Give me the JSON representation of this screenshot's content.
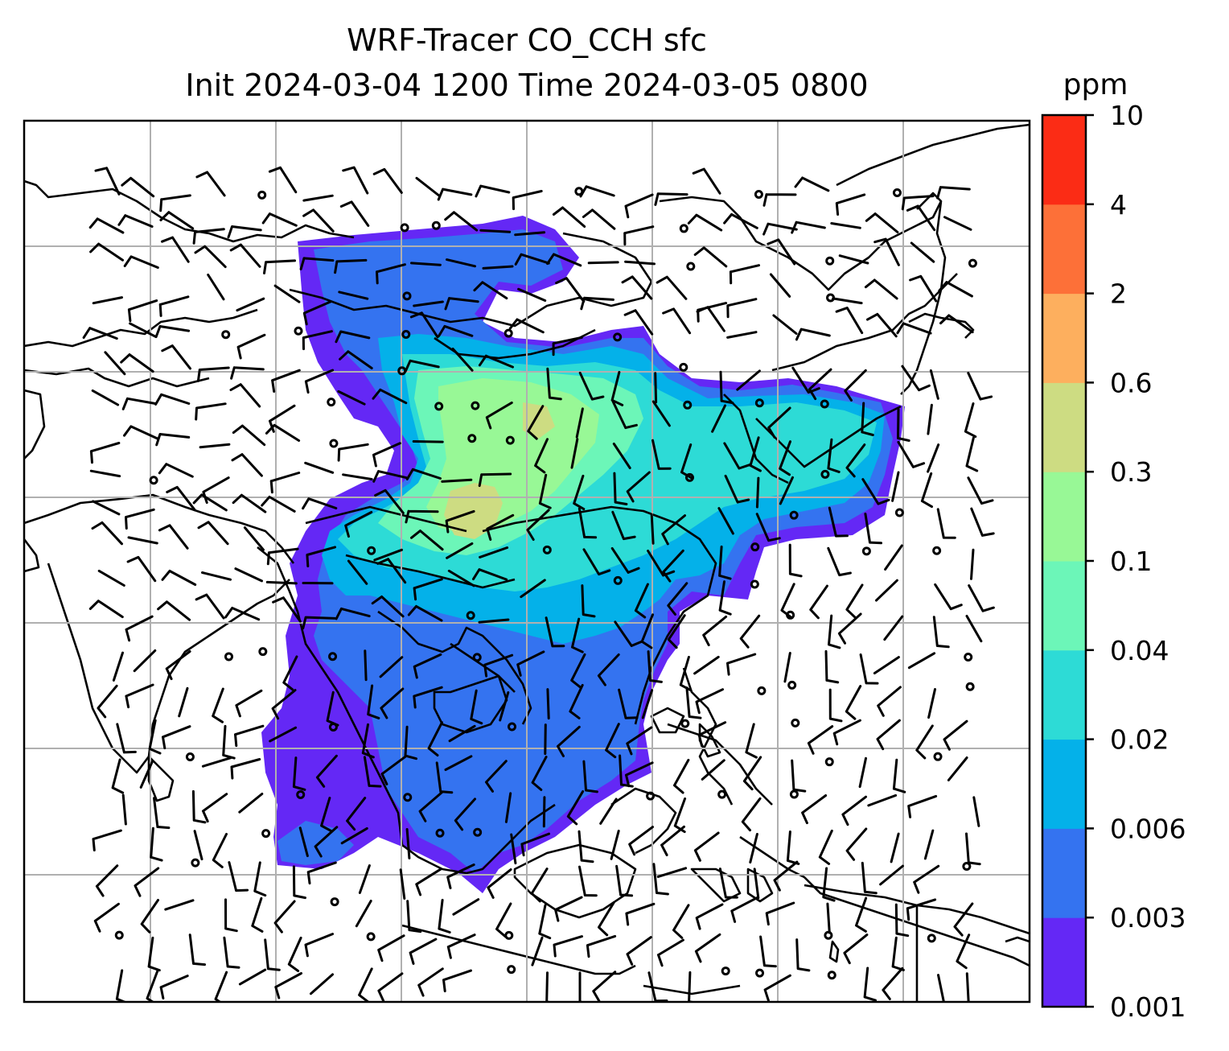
{
  "title": {
    "line1": "WRF-Tracer CO_CCH sfc",
    "line2": "Init 2024-03-04 1200 Time 2024-03-05 0800"
  },
  "colorbar": {
    "unit": "ppm",
    "ticks": [
      "0.001",
      "0.003",
      "0.006",
      "0.02",
      "0.04",
      "0.1",
      "0.3",
      "0.6",
      "2",
      "4",
      "10"
    ],
    "colors": [
      "#6428f5",
      "#3473f0",
      "#04b1e9",
      "#2ddbd6",
      "#6cf6b8",
      "#98f896",
      "#cddc82",
      "#fdaf5e",
      "#fd7038",
      "#fb2c15"
    ]
  }
}
